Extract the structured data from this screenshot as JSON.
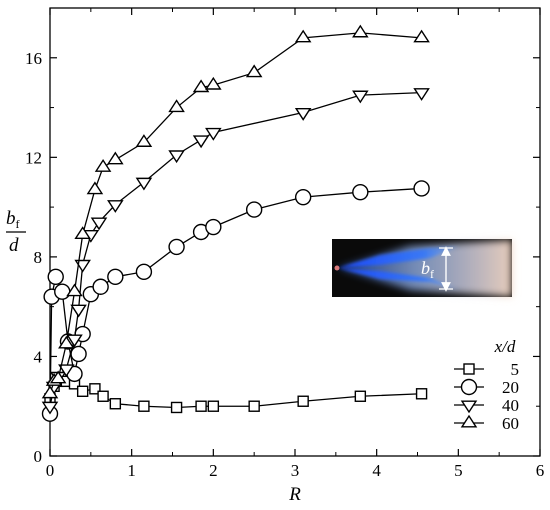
{
  "chart_data": {
    "type": "line",
    "title": "",
    "xlabel": "R",
    "ylabel": {
      "numerator": "b",
      "numerator_sub": "f",
      "denominator": "d"
    },
    "xlim": [
      0,
      6
    ],
    "ylim": [
      0,
      18
    ],
    "xticks": [
      "0",
      "1",
      "2",
      "3",
      "4",
      "5",
      "6"
    ],
    "yticks": [
      "0",
      "4",
      "8",
      "12",
      "16"
    ],
    "grid": false,
    "legend": {
      "title": "x/d",
      "placement": "bottom-right"
    },
    "series": [
      {
        "name": "5",
        "marker": "square",
        "x": [
          0.0,
          0.05,
          0.1,
          0.2,
          0.3,
          0.4,
          0.55,
          0.65,
          0.8,
          1.15,
          1.55,
          1.85,
          2.0,
          2.5,
          3.1,
          3.8,
          4.55
        ],
        "y": [
          2.3,
          2.8,
          3.0,
          3.0,
          2.9,
          2.6,
          2.7,
          2.4,
          2.1,
          2.0,
          1.95,
          2.0,
          2.0,
          2.0,
          2.2,
          2.4,
          2.5
        ]
      },
      {
        "name": "20",
        "marker": "circle",
        "x": [
          0.0,
          0.02,
          0.07,
          0.15,
          0.22,
          0.3,
          0.35,
          0.4,
          0.5,
          0.62,
          0.8,
          1.15,
          1.55,
          1.85,
          2.0,
          2.5,
          3.1,
          3.8,
          4.55
        ],
        "y": [
          1.7,
          6.4,
          7.2,
          6.6,
          4.6,
          3.3,
          4.1,
          4.9,
          6.5,
          6.8,
          7.2,
          7.4,
          8.4,
          9.0,
          9.2,
          9.9,
          10.4,
          10.6,
          10.75
        ]
      },
      {
        "name": "40",
        "marker": "triangle-down",
        "x": [
          0.0,
          0.05,
          0.1,
          0.2,
          0.3,
          0.35,
          0.4,
          0.5,
          0.6,
          0.8,
          1.15,
          1.55,
          1.85,
          2.0,
          3.1,
          3.8,
          4.55
        ],
        "y": [
          2.0,
          2.8,
          3.2,
          3.5,
          4.7,
          5.9,
          7.7,
          8.9,
          9.4,
          10.1,
          11.0,
          12.1,
          12.7,
          13.0,
          13.8,
          14.5,
          14.6
        ]
      },
      {
        "name": "60",
        "marker": "triangle-up",
        "x": [
          0.0,
          0.05,
          0.1,
          0.2,
          0.3,
          0.4,
          0.55,
          0.65,
          0.8,
          1.15,
          1.55,
          1.85,
          2.0,
          2.5,
          3.1,
          3.8,
          4.55
        ],
        "y": [
          2.5,
          3.0,
          3.1,
          4.5,
          6.6,
          8.9,
          10.7,
          11.6,
          11.9,
          12.6,
          14.0,
          14.8,
          14.9,
          15.4,
          16.8,
          17.0,
          16.8
        ]
      }
    ],
    "inset": {
      "label": {
        "base": "b",
        "sub": "f"
      },
      "colors": {
        "background": "#0a0a0a",
        "flame_core": "#1e64ff",
        "flame_glow": "#5aa0ff",
        "flame_tail": "#f3d7c5",
        "nozzle": "#d9797a"
      }
    }
  }
}
